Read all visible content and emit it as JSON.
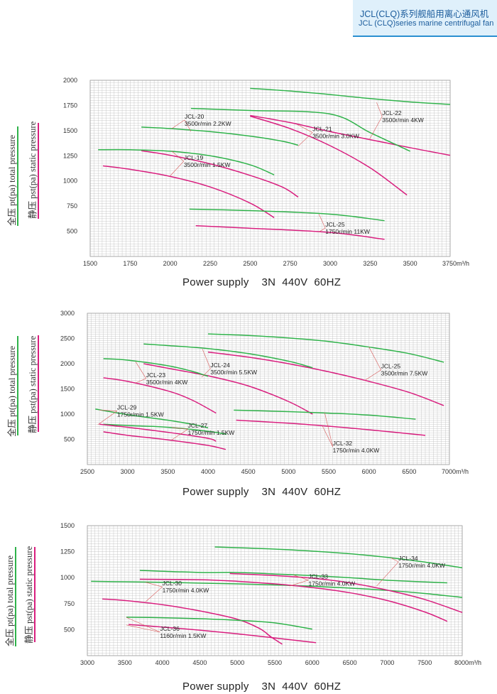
{
  "header": {
    "title_cn": "JCL(CLQ)系列舰船用离心通风机",
    "title_en": "JCL (CLQ)series marine centrifugal fan"
  },
  "side_labels": {
    "total": "全压 pt(pa)  total pressure",
    "static": "静压 pst(pa)  static pressure"
  },
  "colors": {
    "total": "#2fb24a",
    "static": "#d81e7e",
    "leader": "#d85a5a",
    "grid": "#bdbdbd"
  },
  "power_supply": "Power supply    3N  440V  60HZ",
  "chart_data": [
    {
      "type": "line",
      "xlim": [
        1500,
        3750
      ],
      "ylim": [
        250,
        2000
      ],
      "x_ticks": [
        1500,
        1750,
        2000,
        2250,
        2500,
        2750,
        3000,
        3250,
        3500,
        3750
      ],
      "x_tick_labels": [
        "1500",
        "1750",
        "2000",
        "2250",
        "2500",
        "2750",
        "3000",
        "3250",
        "3500",
        "3750m³/h"
      ],
      "y_ticks": [
        500,
        750,
        1000,
        1250,
        1500,
        1750,
        2000
      ],
      "series": [
        {
          "name": "JCL-22",
          "kind": "total",
          "x": [
            2500,
            2750,
            3000,
            3250,
            3500,
            3750
          ],
          "y": [
            1920,
            1893,
            1858,
            1818,
            1785,
            1760
          ]
        },
        {
          "name": "JCL-22",
          "kind": "static",
          "x": [
            2500,
            2750,
            3000,
            3250,
            3500,
            3750
          ],
          "y": [
            1650,
            1580,
            1490,
            1410,
            1330,
            1255
          ]
        },
        {
          "name": "JCL-21",
          "kind": "total",
          "x": [
            2130,
            2500,
            3000,
            3250,
            3500
          ],
          "y": [
            1720,
            1700,
            1665,
            1480,
            1295
          ]
        },
        {
          "name": "JCL-21",
          "kind": "static",
          "x": [
            2500,
            2750,
            3000,
            3250,
            3480
          ],
          "y": [
            1643,
            1520,
            1350,
            1130,
            860
          ]
        },
        {
          "name": "JCL-20",
          "kind": "total",
          "x": [
            1820,
            2000,
            2250,
            2500,
            2700,
            2800
          ],
          "y": [
            1535,
            1520,
            1490,
            1445,
            1395,
            1355
          ]
        },
        {
          "name": "JCL-20",
          "kind": "static",
          "x": [
            1820,
            2000,
            2250,
            2500,
            2700,
            2800
          ],
          "y": [
            1300,
            1255,
            1170,
            1055,
            940,
            840
          ]
        },
        {
          "name": "JCL-19",
          "kind": "total",
          "x": [
            1550,
            1750,
            2000,
            2250,
            2500,
            2650
          ],
          "y": [
            1310,
            1310,
            1295,
            1250,
            1160,
            1060
          ]
        },
        {
          "name": "JCL-19",
          "kind": "static",
          "x": [
            1580,
            1750,
            2000,
            2250,
            2500,
            2650
          ],
          "y": [
            1150,
            1115,
            1045,
            940,
            780,
            635
          ]
        },
        {
          "name": "JCL-25",
          "kind": "total",
          "x": [
            2120,
            2500,
            3000,
            3340
          ],
          "y": [
            720,
            705,
            670,
            605
          ]
        },
        {
          "name": "JCL-25",
          "kind": "static",
          "x": [
            2160,
            2500,
            3000,
            3340
          ],
          "y": [
            555,
            530,
            488,
            420
          ]
        }
      ],
      "annotations": [
        {
          "name": "JCL-20",
          "text": [
            "JCL-20",
            "3500r/min  2.2KW"
          ],
          "data": [
            2090,
            1620
          ],
          "targets": [
            [
              2010,
              1520
            ],
            [
              2130,
              1490
            ]
          ]
        },
        {
          "name": "JCL-21",
          "text": [
            "JCL-21",
            "3500r/min  3.0KW"
          ],
          "data": [
            2890,
            1495
          ],
          "targets": [
            [
              2795,
              1560
            ],
            [
              2800,
              1345
            ]
          ]
        },
        {
          "name": "JCL-22",
          "text": [
            "JCL-22",
            "3500r/min  4KW"
          ],
          "data": [
            3325,
            1655
          ],
          "targets": [
            [
              3290,
              1780
            ],
            [
              3245,
              1410
            ]
          ]
        },
        {
          "name": "JCL-19",
          "text": [
            "JCL-19",
            "3500r/min  1.5KW"
          ],
          "data": [
            2085,
            1210
          ],
          "targets": [
            [
              2010,
              1295
            ],
            [
              2000,
              1050
            ]
          ]
        },
        {
          "name": "JCL-25",
          "text": [
            "JCL-25",
            "1750r/min  11KW"
          ],
          "data": [
            2970,
            545
          ],
          "targets": [
            [
              2930,
              670
            ],
            [
              2930,
              495
            ]
          ]
        }
      ]
    },
    {
      "type": "line",
      "xlim": [
        2500,
        7000
      ],
      "ylim": [
        0,
        3000
      ],
      "x_ticks": [
        2500,
        3000,
        3500,
        4000,
        4500,
        5000,
        5500,
        6000,
        6500,
        7000
      ],
      "x_tick_labels": [
        "2500",
        "3000",
        "3500",
        "4000",
        "4500",
        "5000",
        "5500",
        "6000",
        "6500",
        "7000m³/h"
      ],
      "y_ticks": [
        500,
        1000,
        1500,
        2000,
        2500,
        3000
      ],
      "series": [
        {
          "name": "JCL-25",
          "kind": "total",
          "x": [
            4000,
            4500,
            5000,
            5500,
            6000,
            6500,
            6930
          ],
          "y": [
            2590,
            2560,
            2510,
            2440,
            2330,
            2200,
            2030
          ]
        },
        {
          "name": "JCL-25",
          "kind": "static",
          "x": [
            4000,
            4500,
            5000,
            5500,
            6000,
            6500,
            6930
          ],
          "y": [
            2230,
            2130,
            2000,
            1840,
            1650,
            1430,
            1170
          ]
        },
        {
          "name": "JCL-24",
          "kind": "total",
          "x": [
            3200,
            3500,
            4000,
            4500,
            5000,
            5300
          ],
          "y": [
            2390,
            2360,
            2300,
            2200,
            2050,
            1920
          ]
        },
        {
          "name": "JCL-24",
          "kind": "static",
          "x": [
            3200,
            3500,
            4000,
            4500,
            5000,
            5300
          ],
          "y": [
            2000,
            1910,
            1760,
            1560,
            1250,
            1000
          ]
        },
        {
          "name": "JCL-23",
          "kind": "total",
          "x": [
            2700,
            3000,
            3500,
            3800,
            4000
          ],
          "y": [
            2100,
            2070,
            1960,
            1850,
            1750
          ]
        },
        {
          "name": "JCL-23",
          "kind": "static",
          "x": [
            2700,
            3000,
            3500,
            3800,
            4100
          ],
          "y": [
            1720,
            1650,
            1460,
            1280,
            1020
          ]
        },
        {
          "name": "JCL-29",
          "kind": "total",
          "x": [
            2600,
            3000,
            3500,
            3800,
            4000
          ],
          "y": [
            1100,
            990,
            880,
            800,
            730
          ]
        },
        {
          "name": "JCL-27",
          "kind": "total",
          "x": [
            2700,
            3000,
            3500,
            4000,
            4230
          ],
          "y": [
            800,
            775,
            740,
            660,
            600
          ]
        },
        {
          "name": "JCL-29",
          "kind": "static",
          "x": [
            2650,
            3000,
            3500,
            4000,
            4100
          ],
          "y": [
            800,
            740,
            640,
            520,
            460
          ]
        },
        {
          "name": "JCL-27",
          "kind": "static",
          "x": [
            2700,
            3000,
            3500,
            4000,
            4220
          ],
          "y": [
            650,
            580,
            490,
            380,
            300
          ]
        },
        {
          "name": "JCL-32",
          "kind": "total",
          "x": [
            4320,
            5000,
            5500,
            6000,
            6580
          ],
          "y": [
            1080,
            1050,
            1020,
            980,
            900
          ]
        },
        {
          "name": "JCL-32",
          "kind": "static",
          "x": [
            4350,
            5000,
            5500,
            6000,
            6700
          ],
          "y": [
            880,
            820,
            760,
            690,
            580
          ]
        }
      ],
      "annotations": [
        {
          "name": "JCL-24",
          "text": [
            "JCL-24",
            "3500r/min  5.5KW"
          ],
          "data": [
            4030,
            1930
          ],
          "targets": [
            [
              3930,
              2290
            ],
            [
              3920,
              1730
            ]
          ]
        },
        {
          "name": "JCL-23",
          "text": [
            "JCL-23",
            "3500r/min  4KW"
          ],
          "data": [
            3230,
            1735
          ],
          "targets": [
            [
              3100,
              2040
            ],
            [
              3100,
              1620
            ]
          ]
        },
        {
          "name": "JCL-25",
          "text": [
            "JCL-25",
            "3500r/min  7.5KW"
          ],
          "data": [
            6150,
            1905
          ],
          "targets": [
            [
              6000,
              2330
            ],
            [
              5950,
              1670
            ]
          ]
        },
        {
          "name": "JCL-29",
          "text": [
            "JCL-29",
            "1750r/min  1.5KW"
          ],
          "data": [
            2870,
            1090
          ],
          "targets": [
            [
              2650,
              1080
            ],
            [
              2630,
              790
            ]
          ]
        },
        {
          "name": "JCL-27",
          "text": [
            "JCL-27",
            "1750r/min  1.5KW"
          ],
          "data": [
            3750,
            730
          ],
          "targets": [
            [
              3550,
              735
            ],
            [
              3540,
              480
            ]
          ]
        },
        {
          "name": "JCL-32",
          "text": [
            "JCL-32",
            "1750r/min  4.0KW"
          ],
          "data": [
            5550,
            380
          ],
          "targets": [
            [
              5450,
              1025
            ],
            [
              5420,
              770
            ]
          ]
        }
      ]
    },
    {
      "type": "line",
      "xlim": [
        3000,
        8000
      ],
      "ylim": [
        250,
        1500
      ],
      "x_ticks": [
        3000,
        3500,
        4000,
        4500,
        5000,
        5500,
        6000,
        6500,
        7000,
        7500,
        8000
      ],
      "x_tick_labels": [
        "3000",
        "3500",
        "4000",
        "4500",
        "5000",
        "5500",
        "6000",
        "6500",
        "7000",
        "7500",
        "8000m³/h"
      ],
      "y_ticks": [
        500,
        750,
        1000,
        1250,
        1500
      ],
      "series": [
        {
          "name": "JCL-34",
          "kind": "total",
          "x": [
            4700,
            5500,
            6000,
            6500,
            7000,
            7500,
            8000
          ],
          "y": [
            1295,
            1275,
            1255,
            1230,
            1195,
            1150,
            1095
          ]
        },
        {
          "name": "JCL-33",
          "kind": "total",
          "x": [
            3700,
            4500,
            5000,
            5500,
            6000,
            6500,
            7000,
            7800
          ],
          "y": [
            1070,
            1050,
            1050,
            1035,
            1020,
            1000,
            975,
            950
          ]
        },
        {
          "name": "JCL-30",
          "kind": "total",
          "x": [
            3050,
            3500,
            4000,
            4500,
            5000,
            5500,
            6000,
            6500,
            7000,
            7500,
            8000
          ],
          "y": [
            965,
            960,
            955,
            948,
            940,
            930,
            918,
            900,
            878,
            848,
            810
          ]
        },
        {
          "name": "JCL-34",
          "kind": "static",
          "x": [
            4900,
            5500,
            6000,
            6500,
            7000,
            7500,
            8000
          ],
          "y": [
            1040,
            1020,
            995,
            950,
            880,
            790,
            665
          ]
        },
        {
          "name": "JCL-33",
          "kind": "static",
          "x": [
            3700,
            4500,
            5000,
            5500,
            6000,
            6500,
            7000,
            7500,
            7800
          ],
          "y": [
            985,
            980,
            965,
            940,
            905,
            855,
            780,
            670,
            580
          ]
        },
        {
          "name": "JCL-30",
          "kind": "static",
          "x": [
            3200,
            3500,
            4000,
            4500,
            5000,
            5300,
            5450,
            5600
          ],
          "y": [
            795,
            780,
            740,
            680,
            600,
            510,
            430,
            360
          ]
        },
        {
          "name": "JCL-36",
          "kind": "total",
          "x": [
            3520,
            4000,
            4500,
            5000,
            5500,
            6000
          ],
          "y": [
            620,
            615,
            605,
            590,
            565,
            505
          ]
        },
        {
          "name": "JCL-36",
          "kind": "static",
          "x": [
            3550,
            4000,
            4500,
            5000,
            5500,
            6050
          ],
          "y": [
            550,
            525,
            495,
            460,
            420,
            375
          ]
        }
      ],
      "annotations": [
        {
          "name": "JCL-34",
          "text": [
            "JCL-34",
            "1750r/min  4.0KW"
          ],
          "data": [
            7150,
            1165
          ],
          "targets": [
            [
              7050,
              1190
            ],
            [
              6860,
              920
            ]
          ]
        },
        {
          "name": "JCL-33",
          "text": [
            "JCL-33",
            "1750r/min  4.0KW"
          ],
          "data": [
            5950,
            990
          ],
          "targets": [
            [
              5750,
              1025
            ],
            [
              5700,
              920
            ]
          ]
        },
        {
          "name": "JCL-30",
          "text": [
            "JCL-30",
            "1750r/min  4.0KW"
          ],
          "data": [
            4000,
            925
          ],
          "targets": [
            [
              3780,
              955
            ],
            [
              3780,
              770
            ]
          ]
        },
        {
          "name": "JCL-36",
          "text": [
            "JCL-36",
            "1160r/min  1.5KW"
          ],
          "data": [
            3970,
            490
          ],
          "targets": [
            [
              3520,
              618
            ],
            [
              3520,
              545
            ]
          ]
        }
      ]
    }
  ]
}
